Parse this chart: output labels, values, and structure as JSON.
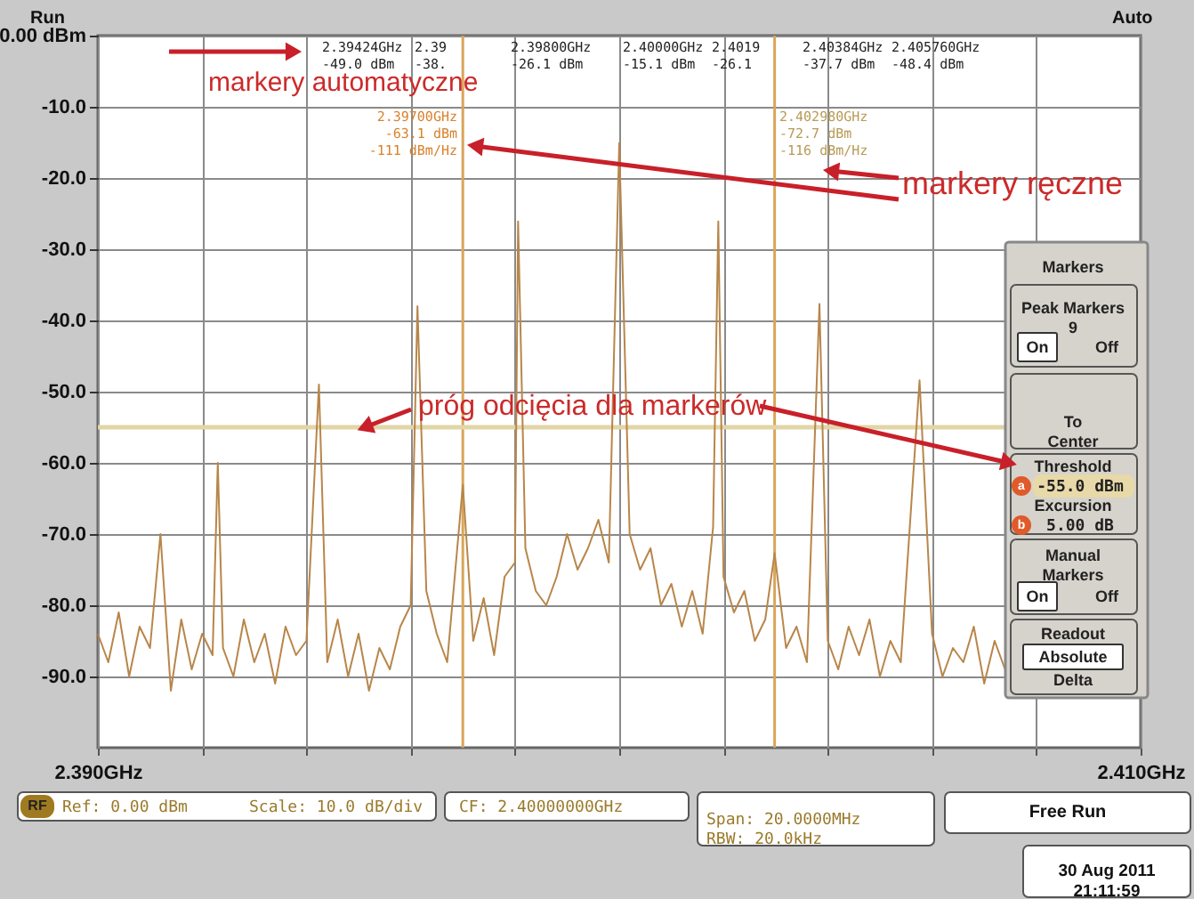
{
  "chart_data": {
    "type": "line",
    "grid": true,
    "xlim": [
      2.39,
      2.41
    ],
    "xticks": [
      {
        "value": 2.39,
        "label": "2.390GHz"
      },
      {
        "value": 2.392,
        "label": null
      },
      {
        "value": 2.394,
        "label": null
      },
      {
        "value": 2.396,
        "label": null
      },
      {
        "value": 2.398,
        "label": null
      },
      {
        "value": 2.4,
        "label": null
      },
      {
        "value": 2.402,
        "label": null
      },
      {
        "value": 2.404,
        "label": null
      },
      {
        "value": 2.406,
        "label": null
      },
      {
        "value": 2.408,
        "label": null
      },
      {
        "value": 2.41,
        "label": "2.410GHz"
      }
    ],
    "ylim": [
      -100,
      0
    ],
    "yticks": [
      {
        "value": 0,
        "label": "0.00 dBm"
      },
      {
        "value": -10,
        "label": "-10.0"
      },
      {
        "value": -20,
        "label": "-20.0"
      },
      {
        "value": -30,
        "label": "-30.0"
      },
      {
        "value": -40,
        "label": "-40.0"
      },
      {
        "value": -50,
        "label": "-50.0"
      },
      {
        "value": -60,
        "label": "-60.0"
      },
      {
        "value": -70,
        "label": "-70.0"
      },
      {
        "value": -80,
        "label": "-80.0"
      },
      {
        "value": -90,
        "label": "-90.0"
      }
    ],
    "x": [
      2.39,
      2.3902,
      2.3904,
      2.3906,
      2.3908,
      2.391,
      2.3912,
      2.3914,
      2.3916,
      2.3918,
      2.392,
      2.3922,
      2.3923,
      2.3924,
      2.3926,
      2.3928,
      2.393,
      2.3932,
      2.3934,
      2.3936,
      2.3938,
      2.394,
      2.39424,
      2.3944,
      2.3946,
      2.3948,
      2.395,
      2.3952,
      2.3954,
      2.3956,
      2.3958,
      2.396,
      2.39613,
      2.3963,
      2.3965,
      2.3967,
      2.397,
      2.3972,
      2.3974,
      2.3976,
      2.3978,
      2.398,
      2.39806,
      2.3982,
      2.3984,
      2.3986,
      2.3988,
      2.399,
      2.3992,
      2.3994,
      2.3996,
      2.3998,
      2.4,
      2.4002,
      2.4004,
      2.4006,
      2.4008,
      2.401,
      2.4012,
      2.4014,
      2.4016,
      2.4018,
      2.4019,
      2.402,
      2.4022,
      2.4024,
      2.4026,
      2.4028,
      2.40298,
      2.4032,
      2.4034,
      2.4036,
      2.40384,
      2.404,
      2.4042,
      2.4044,
      2.4046,
      2.4048,
      2.405,
      2.4052,
      2.4054,
      2.40576,
      2.406,
      2.4062,
      2.4064,
      2.4066,
      2.4068,
      2.407,
      2.4072,
      2.4074
    ],
    "series": [
      {
        "color": "#b8864a",
        "values": [
          -84,
          -88,
          -81,
          -90,
          -83,
          -86,
          -70,
          -92,
          -82,
          -89,
          -84,
          -87,
          -60,
          -86,
          -90,
          -82,
          -88,
          -84,
          -91,
          -83,
          -87,
          -85,
          -49,
          -88,
          -82,
          -90,
          -84,
          -92,
          -86,
          -89,
          -83,
          -80,
          -38,
          -78,
          -84,
          -88,
          -63.1,
          -85,
          -79,
          -87,
          -76,
          -74,
          -26.1,
          -72,
          -78,
          -80,
          -76,
          -70,
          -75,
          -72,
          -68,
          -74,
          -15.1,
          -70,
          -75,
          -72,
          -80,
          -77,
          -83,
          -78,
          -84,
          -69,
          -26.1,
          -76,
          -81,
          -78,
          -85,
          -82,
          -72.7,
          -86,
          -83,
          -88,
          -37.7,
          -85,
          -89,
          -83,
          -87,
          -82,
          -90,
          -85,
          -88,
          -48.4,
          -84,
          -90,
          -86,
          -88,
          -83,
          -91,
          -85,
          -89
        ]
      }
    ],
    "ref_lines": [
      {
        "axis": "y",
        "value": -55,
        "color": "#e2d5a6"
      },
      {
        "axis": "x",
        "value": 2.397,
        "color": "#d9a55a"
      },
      {
        "axis": "x",
        "value": 2.40298,
        "color": "#d9a55a"
      }
    ],
    "annotations": [
      "2.39424GHz\n-49.0 dBm",
      "2.39\n-38.",
      "2.39800GHz\n-26.1 dBm",
      "2.40000GHz\n-15.1 dBm",
      "2.4019\n-26.1",
      "2.40384GHz\n-37.7 dBm",
      "2.405760GHz\n-48.4 dBm",
      "2.39700GHz\n-63.1 dBm\n-111 dBm/Hz",
      "2.402980GHz\n-72.7 dBm\n-116 dBm/Hz",
      "markery automatyczne",
      "markery ręczne",
      {
        "text": "próg odcięcia dla markerów",
        "x": 2.39512,
        "y": -55
      },
      "Run",
      "Auto",
      "Ref: 0.00 dBm",
      "Scale: 10.0 dB/div",
      "CF: 2.40000000GHz",
      "Span:    20.0000MHz\nRBW:     20.0kHz",
      "Free Run",
      "30 Aug 2011\n21:11:59",
      "RF",
      "Markers",
      "Peak Markers\n9",
      "On",
      "Off",
      "To\nCenter",
      "Threshold",
      "a",
      "-55.0  dBm",
      "Excursion",
      "b",
      "5.00  dB",
      "Manual\nMarkers",
      "On",
      "Off",
      "Readout",
      "Absolute",
      "Delta"
    ]
  }
}
